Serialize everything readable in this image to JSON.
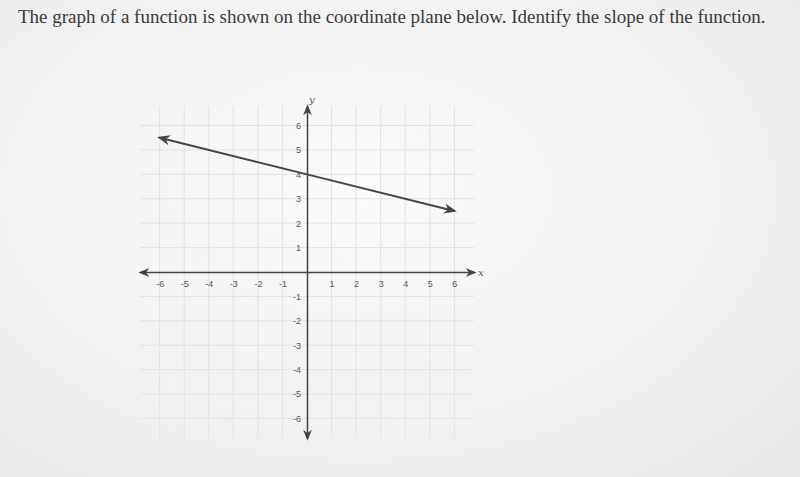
{
  "chart_data": {
    "type": "line",
    "title": "The graph of a function is shown on the coordinate plane below. Identify the slope of the function.",
    "xlabel": "x",
    "ylabel": "y",
    "x": [
      -6,
      0,
      6
    ],
    "values": [
      5.5,
      4,
      2.5
    ],
    "color": "#454545",
    "xlim": [
      -6.8,
      6.8
    ],
    "ylim": [
      -6.8,
      6.8
    ],
    "xticks": [
      -6,
      -5,
      -4,
      -3,
      -2,
      -1,
      1,
      2,
      3,
      4,
      5,
      6
    ],
    "yticks": [
      -6,
      -5,
      -4,
      -3,
      -2,
      -1,
      1,
      2,
      3,
      4,
      5,
      6
    ],
    "grid": true,
    "marker": "arrow",
    "line_style": "solid"
  }
}
